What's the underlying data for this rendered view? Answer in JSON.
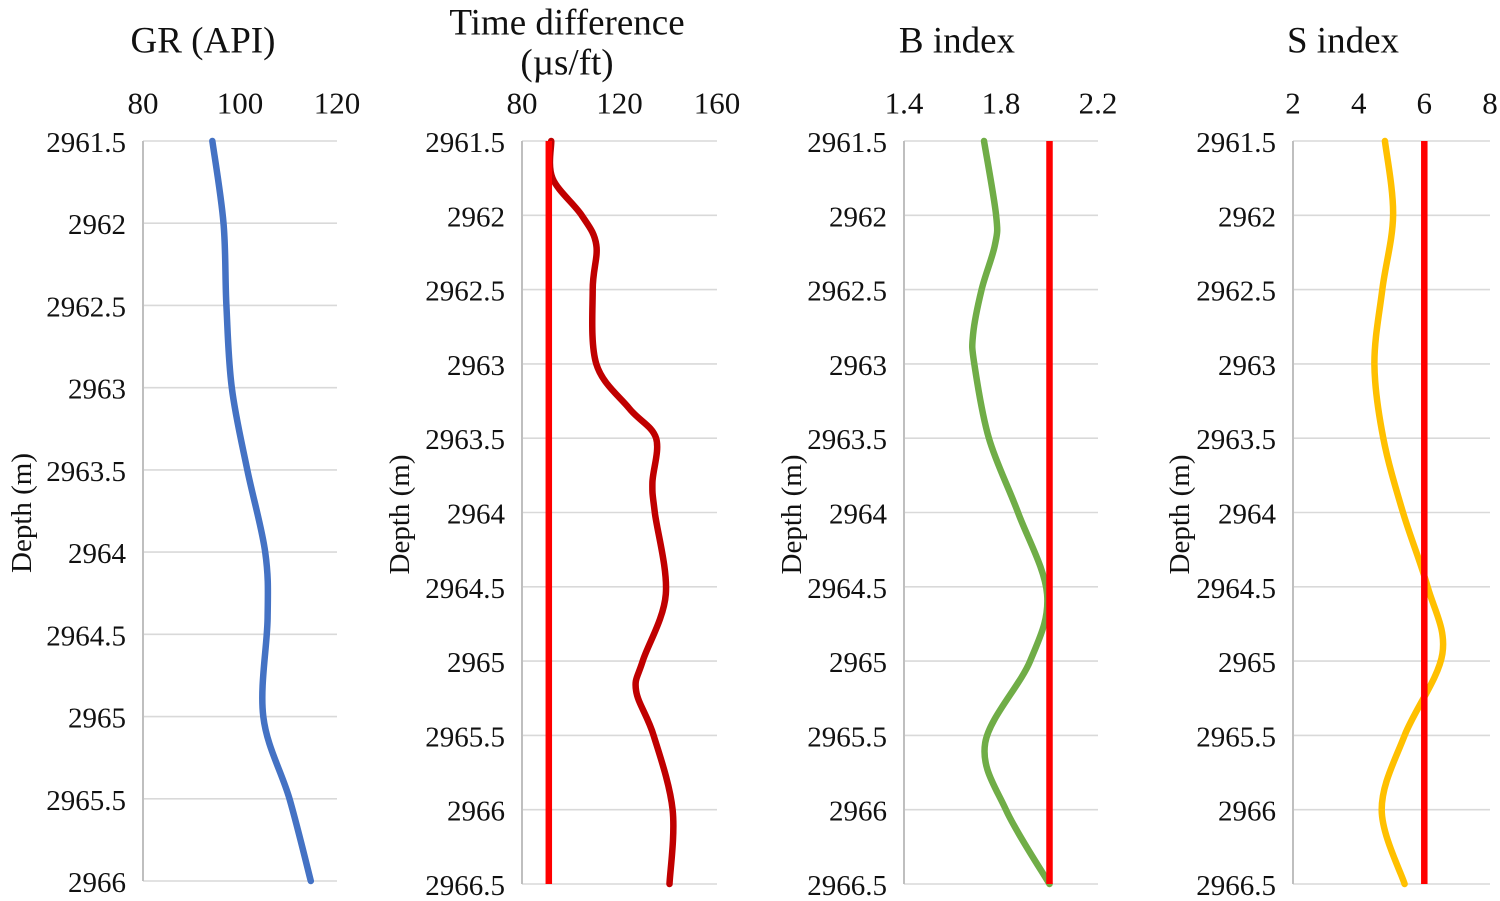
{
  "figure": {
    "background": "#ffffff",
    "depth_axis_label": "Depth (m)",
    "grid_color": "#D9D9D9",
    "axis_color": "#BFBFBF",
    "threshold_color": "#FF0000"
  },
  "chart_data": [
    {
      "id": "gr",
      "type": "line",
      "title": "GR (API)",
      "title_lines": [
        "GR (API)"
      ],
      "x_axis_position": "top",
      "x_ticks": [
        "80",
        "100",
        "120"
      ],
      "x_tick_values": [
        80,
        100,
        120
      ],
      "x_range": [
        80,
        120
      ],
      "ylabel": "Depth (m)",
      "y_inverted": true,
      "depth_range": [
        2961.5,
        2966
      ],
      "depth_ticks": [
        "2961.5",
        "2962",
        "2962.5",
        "2963",
        "2963.5",
        "2964",
        "2964.5",
        "2965",
        "2965.5",
        "2966"
      ],
      "depth_tick_values": [
        2961.5,
        2962,
        2962.5,
        2963,
        2963.5,
        2964,
        2964.5,
        2965,
        2965.5,
        2966
      ],
      "grid": true,
      "line_color": "#4472C4",
      "ref_line": null,
      "series": [
        {
          "name": "GR",
          "points": [
            [
              2961.5,
              94.3
            ],
            [
              2962,
              96.6
            ],
            [
              2962.5,
              97.2
            ],
            [
              2963,
              98.3
            ],
            [
              2963.5,
              101.5
            ],
            [
              2964,
              105.2
            ],
            [
              2964.4,
              105.7
            ],
            [
              2965,
              104.8
            ],
            [
              2965.5,
              110.2
            ],
            [
              2966,
              114.6
            ]
          ]
        }
      ]
    },
    {
      "id": "time-difference",
      "type": "line",
      "title": "Time difference (µs/ft)",
      "title_lines": [
        "Time difference",
        "(µs/ft)"
      ],
      "x_axis_position": "top",
      "x_ticks": [
        "80",
        "120",
        "160"
      ],
      "x_tick_values": [
        80,
        120,
        160
      ],
      "x_range": [
        80,
        160
      ],
      "ylabel": "Depth (m)",
      "y_inverted": true,
      "depth_range": [
        2961.5,
        2966.5
      ],
      "depth_ticks": [
        "2961.5",
        "2962",
        "2962.5",
        "2963",
        "2963.5",
        "2964",
        "2964.5",
        "2965",
        "2965.5",
        "2966",
        "2966.5"
      ],
      "depth_tick_values": [
        2961.5,
        2962,
        2962.5,
        2963,
        2963.5,
        2964,
        2964.5,
        2965,
        2965.5,
        2966,
        2966.5
      ],
      "grid": true,
      "line_color": "#C00000",
      "ref_line": {
        "value": 91,
        "color": "#FF0000"
      },
      "series": [
        {
          "name": "Time difference",
          "points": [
            [
              2961.5,
              92
            ],
            [
              2961.75,
              92.5
            ],
            [
              2962,
              104.5
            ],
            [
              2962.2,
              110.5
            ],
            [
              2962.5,
              109
            ],
            [
              2963,
              110.5
            ],
            [
              2963.3,
              124
            ],
            [
              2963.5,
              135
            ],
            [
              2963.8,
              133.5
            ],
            [
              2964,
              134.5
            ],
            [
              2964.55,
              139
            ],
            [
              2965,
              129.5
            ],
            [
              2965.2,
              126.8
            ],
            [
              2965.5,
              134
            ],
            [
              2966,
              141.8
            ],
            [
              2966.5,
              140.5
            ]
          ]
        }
      ]
    },
    {
      "id": "b-index",
      "type": "line",
      "title": "B index",
      "title_lines": [
        "B index"
      ],
      "x_axis_position": "top",
      "x_ticks": [
        "1.4",
        "1.8",
        "2.2"
      ],
      "x_tick_values": [
        1.4,
        1.8,
        2.2
      ],
      "x_range": [
        1.4,
        2.2
      ],
      "ylabel": "Depth (m)",
      "y_inverted": true,
      "depth_range": [
        2961.5,
        2966.5
      ],
      "depth_ticks": [
        "2961.5",
        "2962",
        "2962.5",
        "2963",
        "2963.5",
        "2964",
        "2964.5",
        "2965",
        "2965.5",
        "2966",
        "2966.5"
      ],
      "depth_tick_values": [
        2961.5,
        2962,
        2962.5,
        2963,
        2963.5,
        2964,
        2964.5,
        2965,
        2965.5,
        2966,
        2966.5
      ],
      "grid": true,
      "line_color": "#70AD47",
      "ref_line": {
        "value": 2.0,
        "color": "#FF0000"
      },
      "series": [
        {
          "name": "B index",
          "points": [
            [
              2961.5,
              1.73
            ],
            [
              2962,
              1.78
            ],
            [
              2962.2,
              1.775
            ],
            [
              2962.5,
              1.72
            ],
            [
              2962.8,
              1.685
            ],
            [
              2963,
              1.69
            ],
            [
              2963.5,
              1.75
            ],
            [
              2964,
              1.87
            ],
            [
              2964.55,
              1.99
            ],
            [
              2965,
              1.92
            ],
            [
              2965.55,
              1.735
            ],
            [
              2966,
              1.82
            ],
            [
              2966.5,
              2.0
            ]
          ]
        }
      ]
    },
    {
      "id": "s-index",
      "type": "line",
      "title": "S index",
      "title_lines": [
        "S index"
      ],
      "x_axis_position": "top",
      "x_ticks": [
        "2",
        "4",
        "6",
        "8"
      ],
      "x_tick_values": [
        2,
        4,
        6,
        8
      ],
      "x_range": [
        2,
        8
      ],
      "ylabel": "Depth (m)",
      "y_inverted": true,
      "depth_range": [
        2961.5,
        2966.5
      ],
      "depth_ticks": [
        "2961.5",
        "2962",
        "2962.5",
        "2963",
        "2963.5",
        "2964",
        "2964.5",
        "2965",
        "2965.5",
        "2966",
        "2966.5"
      ],
      "depth_tick_values": [
        2961.5,
        2962,
        2962.5,
        2963,
        2963.5,
        2964,
        2964.5,
        2965,
        2965.5,
        2966,
        2966.5
      ],
      "grid": true,
      "line_color": "#FFC000",
      "ref_line": {
        "value": 6,
        "color": "#FF0000"
      },
      "series": [
        {
          "name": "S index",
          "points": [
            [
              2961.5,
              4.8
            ],
            [
              2962,
              5.05
            ],
            [
              2962.5,
              4.72
            ],
            [
              2963,
              4.48
            ],
            [
              2963.5,
              4.75
            ],
            [
              2964,
              5.35
            ],
            [
              2964.5,
              6.1
            ],
            [
              2964.95,
              6.55
            ],
            [
              2965.5,
              5.4
            ],
            [
              2966,
              4.7
            ],
            [
              2966.5,
              5.4
            ]
          ]
        }
      ]
    }
  ]
}
